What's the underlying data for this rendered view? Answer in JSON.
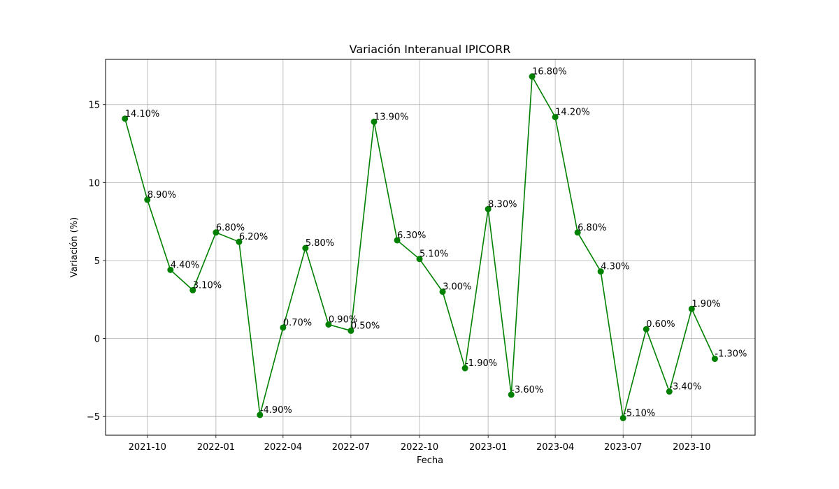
{
  "chart_data": {
    "type": "line",
    "title": "Variación Interanual IPICORR",
    "xlabel": "Fecha",
    "ylabel": "Variación (%)",
    "grid": true,
    "line_color": "#008000",
    "marker": "circle",
    "x": [
      "2021-09",
      "2021-10",
      "2021-11",
      "2021-12",
      "2022-01",
      "2022-02",
      "2022-03",
      "2022-04",
      "2022-05",
      "2022-06",
      "2022-07",
      "2022-08",
      "2022-09",
      "2022-10",
      "2022-11",
      "2022-12",
      "2023-01",
      "2023-02",
      "2023-03",
      "2023-04",
      "2023-05",
      "2023-06",
      "2023-07",
      "2023-08",
      "2023-09",
      "2023-10",
      "2023-11"
    ],
    "values": [
      14.1,
      8.9,
      4.4,
      3.1,
      6.8,
      6.2,
      -4.9,
      0.7,
      5.8,
      0.9,
      0.5,
      13.9,
      6.3,
      5.1,
      3.0,
      -1.9,
      8.3,
      -3.6,
      16.8,
      14.2,
      6.8,
      4.3,
      -5.1,
      0.6,
      -3.4,
      1.9,
      -1.3
    ],
    "data_labels": [
      "14.10%",
      "8.90%",
      "4.40%",
      "3.10%",
      "6.80%",
      "6.20%",
      "-4.90%",
      "0.70%",
      "5.80%",
      "0.90%",
      "0.50%",
      "13.90%",
      "6.30%",
      "5.10%",
      "3.00%",
      "-1.90%",
      "8.30%",
      "-3.60%",
      "16.80%",
      "14.20%",
      "6.80%",
      "4.30%",
      "-5.10%",
      "0.60%",
      "-3.40%",
      "1.90%",
      "-1.30%"
    ],
    "x_ticks": [
      {
        "value": "2021-10",
        "label": "2021-10"
      },
      {
        "value": "2022-01",
        "label": "2022-01"
      },
      {
        "value": "2022-04",
        "label": "2022-04"
      },
      {
        "value": "2022-07",
        "label": "2022-07"
      },
      {
        "value": "2022-10",
        "label": "2022-10"
      },
      {
        "value": "2023-01",
        "label": "2023-01"
      },
      {
        "value": "2023-04",
        "label": "2023-04"
      },
      {
        "value": "2023-07",
        "label": "2023-07"
      },
      {
        "value": "2023-10",
        "label": "2023-10"
      }
    ],
    "y_ticks": [
      {
        "value": -5,
        "label": "−5"
      },
      {
        "value": 0,
        "label": "0"
      },
      {
        "value": 5,
        "label": "5"
      },
      {
        "value": 10,
        "label": "10"
      },
      {
        "value": 15,
        "label": "15"
      }
    ],
    "ylim": [
      -6.2,
      17.9
    ],
    "xlim": [
      "2021-08-06",
      "2023-12-25"
    ]
  }
}
